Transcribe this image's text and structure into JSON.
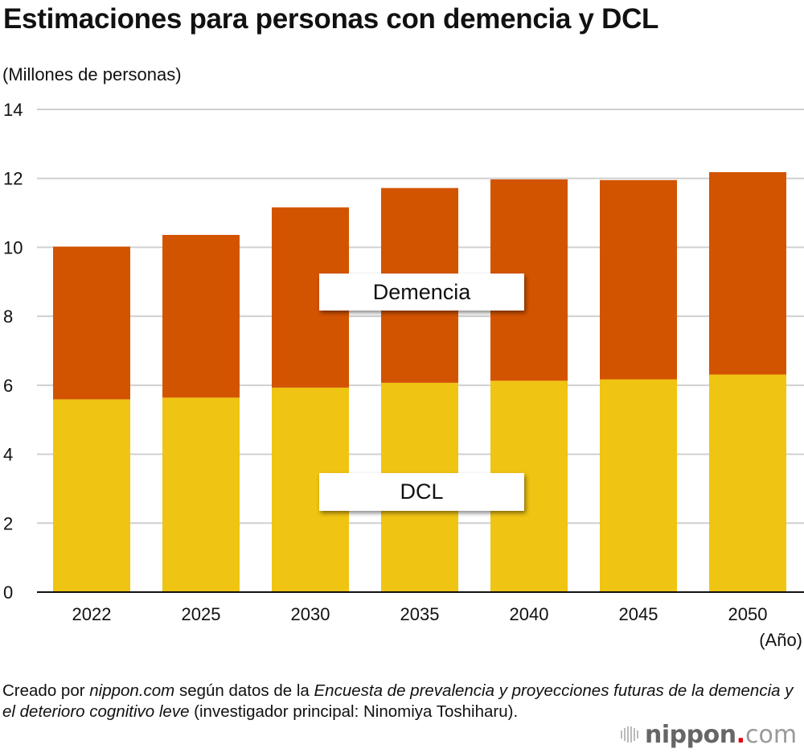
{
  "header": {
    "title": "Estimaciones para personas con demencia y DCL",
    "unit_label": "(Millones de personas)"
  },
  "chart_data": {
    "type": "bar",
    "stacked": true,
    "title": "Estimaciones para personas con demencia y DCL",
    "ylabel": "(Millones de personas)",
    "xlabel": "(Año)",
    "ylim": [
      0,
      14
    ],
    "yticks": [
      0,
      2,
      4,
      6,
      8,
      10,
      12,
      14
    ],
    "grid": true,
    "categories": [
      "2022",
      "2025",
      "2030",
      "2035",
      "2040",
      "2045",
      "2050"
    ],
    "series": [
      {
        "name": "DCL",
        "color": "#f0c412",
        "values": [
          5.59,
          5.64,
          5.93,
          6.07,
          6.13,
          6.17,
          6.31
        ]
      },
      {
        "name": "Demencia",
        "color": "#d35400",
        "values": [
          4.43,
          4.72,
          5.23,
          5.65,
          5.84,
          5.78,
          5.87
        ]
      }
    ],
    "series_labels": {
      "upper": "Demencia",
      "lower": "DCL"
    }
  },
  "source": {
    "prefix": "Creado por ",
    "site": "nippon.com",
    "middle": " según datos de la ",
    "survey": "Encuesta de prevalencia y proyecciones futuras de la demencia y el deterioro cognitivo leve",
    "suffix": " (investigador principal: Ninomiya Toshiharu)."
  },
  "logo": {
    "name": "nippon",
    "dot": ".",
    "tld": "com"
  }
}
